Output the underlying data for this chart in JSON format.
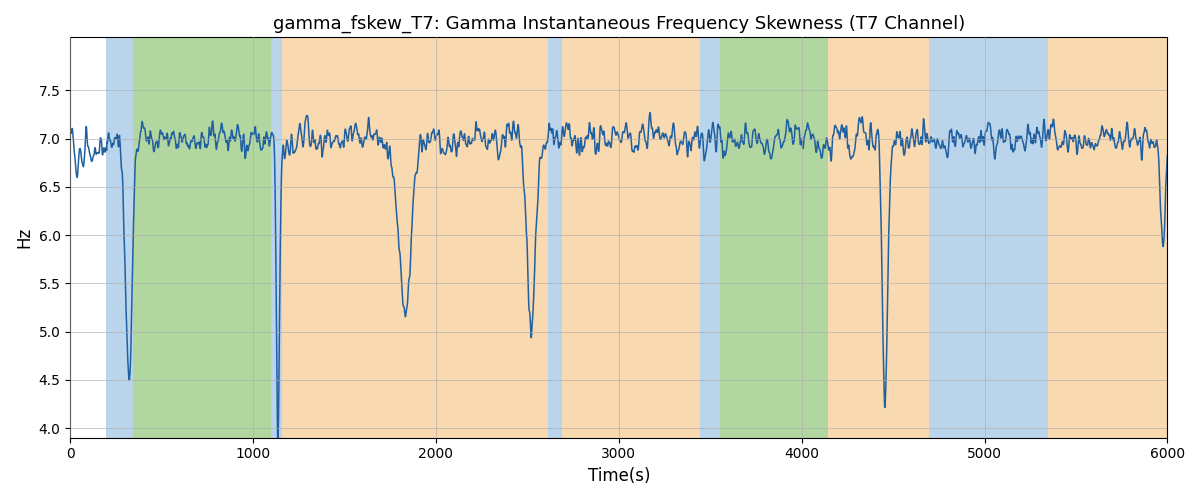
{
  "title": "gamma_fskew_T7: Gamma Instantaneous Frequency Skewness (T7 Channel)",
  "xlabel": "Time(s)",
  "ylabel": "Hz",
  "xlim": [
    0,
    6000
  ],
  "ylim": [
    3.9,
    8.05
  ],
  "bg_regions": [
    {
      "xmin": 0,
      "xmax": 195,
      "color": "#ffffff"
    },
    {
      "xmin": 195,
      "xmax": 345,
      "color": "#bad4ec"
    },
    {
      "xmin": 345,
      "xmax": 1095,
      "color": "#b2d6a0"
    },
    {
      "xmin": 1095,
      "xmax": 1160,
      "color": "#bad4ec"
    },
    {
      "xmin": 1160,
      "xmax": 2610,
      "color": "#f8d9b0"
    },
    {
      "xmin": 2610,
      "xmax": 2690,
      "color": "#bad4ec"
    },
    {
      "xmin": 2690,
      "xmax": 3445,
      "color": "#f8d9b0"
    },
    {
      "xmin": 3445,
      "xmax": 3555,
      "color": "#bad4ec"
    },
    {
      "xmin": 3555,
      "xmax": 4145,
      "color": "#b2d6a0"
    },
    {
      "xmin": 4145,
      "xmax": 4695,
      "color": "#f8d9b0"
    },
    {
      "xmin": 4695,
      "xmax": 5345,
      "color": "#bad4ec"
    },
    {
      "xmin": 5345,
      "xmax": 6000,
      "color": "#f8d9b0"
    }
  ],
  "line_color": "#2060a0",
  "line_width": 1.1,
  "grid_color": "#aaaaaa",
  "grid_alpha": 0.6,
  "seed": 12345
}
